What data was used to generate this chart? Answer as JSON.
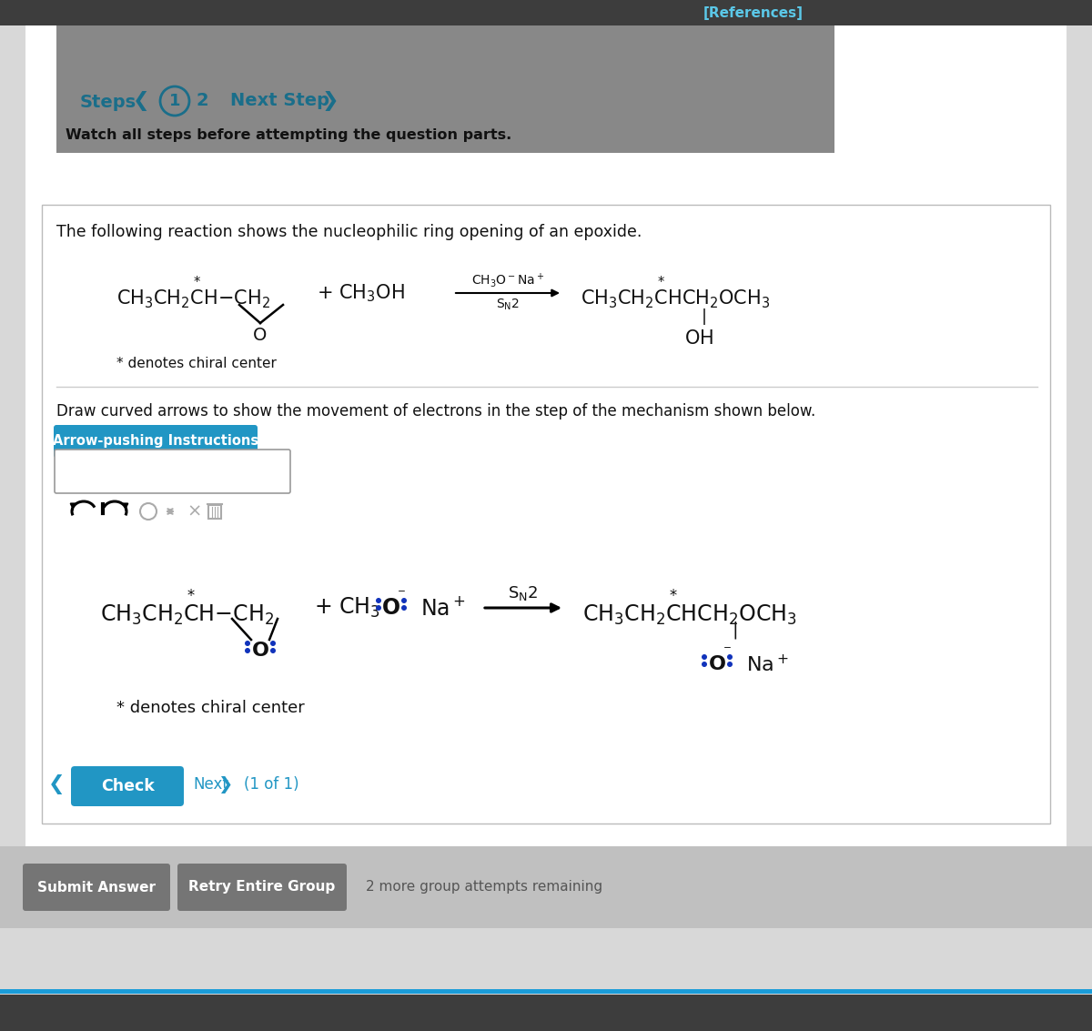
{
  "bg_top_bar": "#3d3d3d",
  "bg_gray_panel": "#888888",
  "bg_white": "#ffffff",
  "references_color": "#5bc8e8",
  "steps_color": "#1a6e8a",
  "blue_btn_color": "#2196c4",
  "gray_btn_color": "#757575",
  "arrow_btn_color": "#2196c4",
  "text_black": "#111111",
  "blue_dot_color": "#1133bb",
  "title_text": "The following reaction shows the nucleophilic ring opening of an epoxide.",
  "steps_label": "Steps",
  "next_step_label": "Next Step",
  "watch_text": "Watch all steps before attempting the question parts.",
  "draw_text": "Draw curved arrows to show the movement of electrons in the step of the mechanism shown below.",
  "arrow_instr_label": "Arrow-pushing Instructions",
  "check_label": "Check",
  "next_label": "Next",
  "of_label": "(1 of 1)",
  "submit_label": "Submit Answer",
  "retry_label": "Retry Entire Group",
  "remaining_text": "2 more group attempts remaining",
  "references_label": "[References]",
  "denotes_text": "* denotes chiral center",
  "page_bg": "#e8e8e8"
}
